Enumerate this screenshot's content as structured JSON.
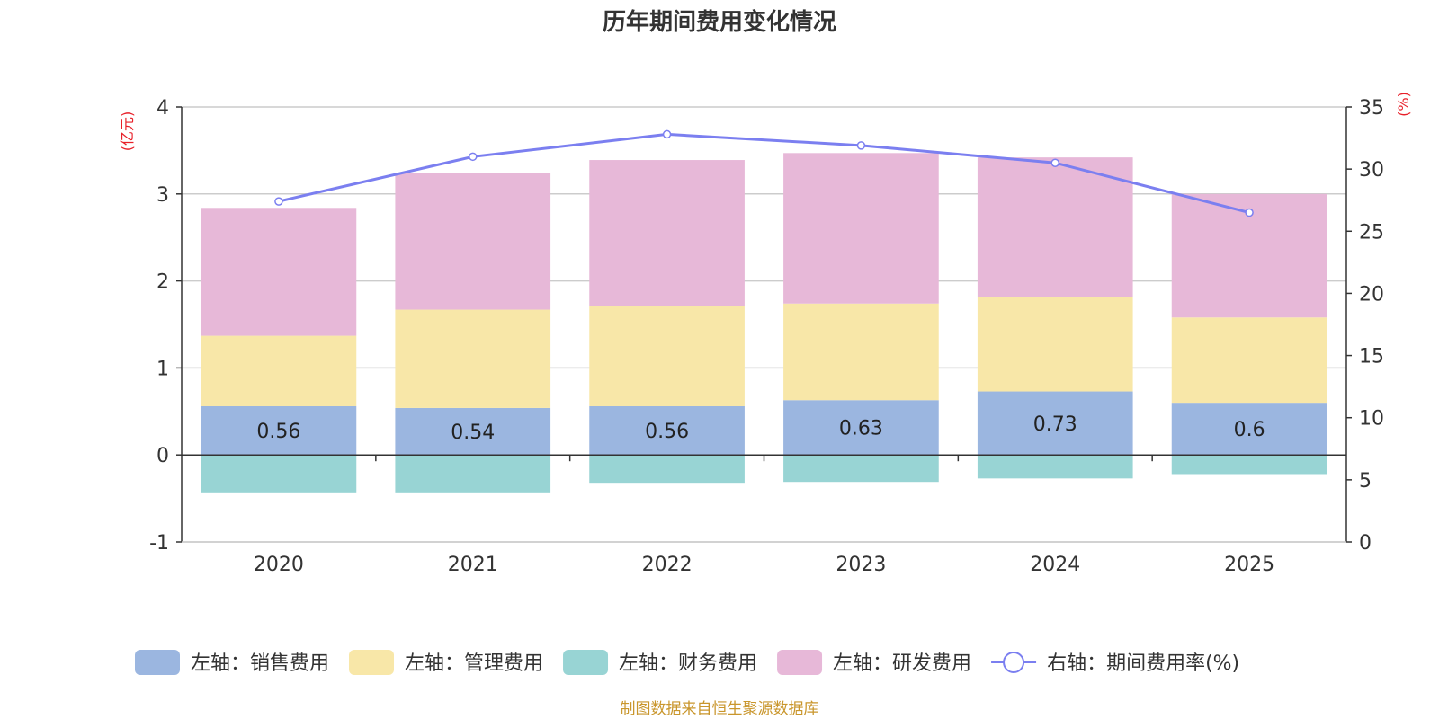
{
  "chart_data": {
    "type": "bar",
    "stacked": true,
    "title": "历年期间费用变化情况",
    "categories": [
      "2020",
      "2021",
      "2022",
      "2023",
      "2024",
      "2025"
    ],
    "left_axis": {
      "label": "(亿元)",
      "min": -1,
      "max": 4,
      "ticks": [
        -1,
        0,
        1,
        2,
        3,
        4
      ]
    },
    "right_axis": {
      "label": "(%)",
      "min": 0,
      "max": 35,
      "ticks": [
        0,
        5,
        10,
        15,
        20,
        25,
        30,
        35
      ]
    },
    "series": [
      {
        "name": "左轴：销售费用",
        "axis": "left",
        "type": "bar",
        "color": "#9bb6e0",
        "values": [
          0.56,
          0.54,
          0.56,
          0.63,
          0.73,
          0.6
        ],
        "labels": [
          "0.56",
          "0.54",
          "0.56",
          "0.63",
          "0.73",
          "0.6"
        ]
      },
      {
        "name": "左轴：管理费用",
        "axis": "left",
        "type": "bar",
        "color": "#f8e7a8",
        "values": [
          0.81,
          1.13,
          1.15,
          1.11,
          1.09,
          0.98
        ]
      },
      {
        "name": "左轴：财务费用",
        "axis": "left",
        "type": "bar",
        "color": "#98d4d4",
        "values": [
          -0.43,
          -0.43,
          -0.32,
          -0.31,
          -0.27,
          -0.22
        ]
      },
      {
        "name": "左轴：研发费用",
        "axis": "left",
        "type": "bar",
        "color": "#e7b8d8",
        "values": [
          1.47,
          1.57,
          1.68,
          1.73,
          1.6,
          1.42
        ]
      },
      {
        "name": "右轴：期间费用率(%)",
        "axis": "right",
        "type": "line",
        "color": "#7b7ff0",
        "values": [
          27.4,
          31.0,
          32.8,
          31.9,
          30.5,
          26.5
        ]
      }
    ],
    "legend_position": "bottom",
    "grid": true
  },
  "source_note": "制图数据来自恒生聚源数据库"
}
